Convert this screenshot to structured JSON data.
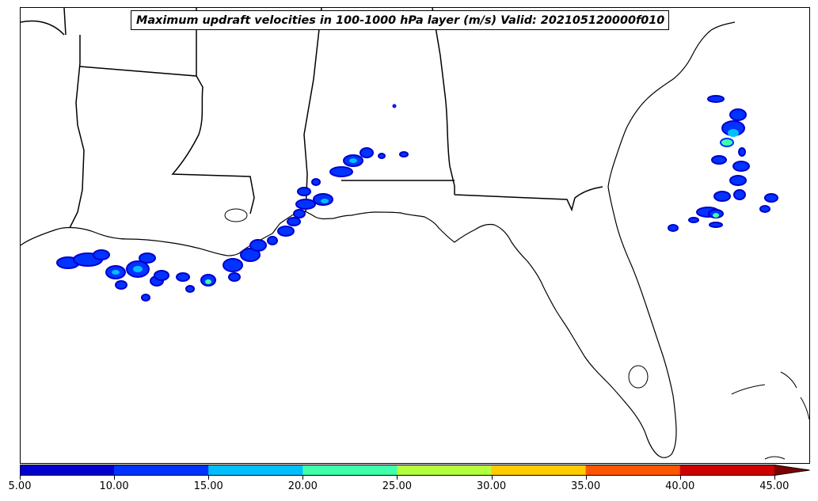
{
  "title": "Maximum updraft velocities in 100-1000 hPa layer (m/s) Valid: 202105120000f010",
  "colorbar": {
    "colors": [
      "#0000cd",
      "#0033ff",
      "#00bfff",
      "#40ffaa",
      "#b4ff3c",
      "#ffcc00",
      "#ff5500",
      "#cc0000",
      "#7f0000"
    ],
    "extend": "max",
    "ticks": [
      "5.00",
      "10.00",
      "15.00",
      "20.00",
      "25.00",
      "30.00",
      "35.00",
      "40.00",
      "45.00"
    ]
  },
  "legend_placement": "bottom"
}
